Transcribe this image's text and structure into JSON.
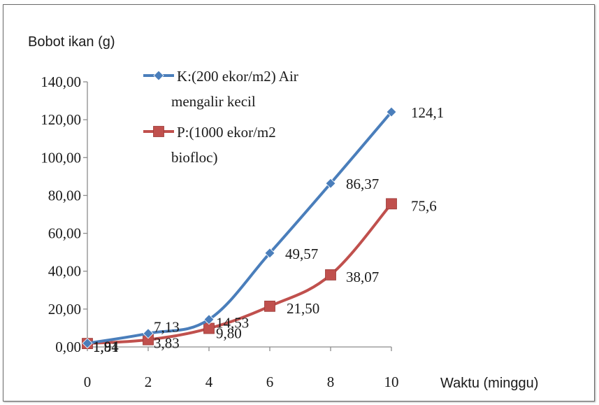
{
  "chart_data": {
    "type": "line",
    "xlabel": "Waktu (minggu)",
    "ylabel": "Bobot ikan (g)",
    "x": [
      0,
      2,
      4,
      6,
      8,
      10
    ],
    "x_ticks": [
      "0",
      "2",
      "4",
      "6",
      "8",
      "10"
    ],
    "y_ticks": [
      "0,00",
      "20,00",
      "40,00",
      "60,00",
      "80,00",
      "100,00",
      "120,00",
      "140,00"
    ],
    "ylim": [
      0,
      140
    ],
    "xlim": [
      0,
      10
    ],
    "grid": false,
    "legend_position": "top-center",
    "series": [
      {
        "name": "K:(200 ekor/m2) Air mengalir kecil",
        "legend_lines": [
          "K:(200 ekor/m2) Air",
          "mengalir kecil"
        ],
        "marker": "diamond",
        "color": "#4a7ebb",
        "values": [
          1.94,
          7.13,
          14.53,
          49.57,
          86.37,
          124.1
        ],
        "labels": [
          "1,94",
          "7,13",
          "14,53",
          "49,57",
          "86,37",
          "124,1"
        ]
      },
      {
        "name": "P:(1000 ekor/m2 biofloc)",
        "legend_lines": [
          "P:(1000 ekor/m2",
          "biofloc)"
        ],
        "marker": "square",
        "color": "#c0504d",
        "values": [
          1.81,
          3.83,
          9.8,
          21.5,
          38.07,
          75.6
        ],
        "labels": [
          "1,81",
          "3,83",
          "9,80",
          "21,50",
          "38,07",
          "75,6"
        ]
      }
    ]
  }
}
